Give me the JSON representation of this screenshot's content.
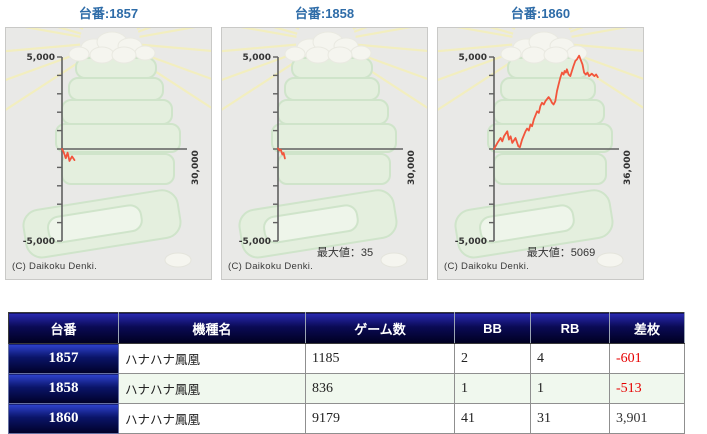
{
  "colors": {
    "title_blue": "#2e6ca8",
    "panel_bg": "#e9e9e7",
    "ray_yellow": "#f4efbb",
    "pagoda_green_fill": "#e4efde",
    "pagoda_green_stroke": "#cfe4ca",
    "blossom_white": "#f5f5ef",
    "axis_gray": "#606060",
    "label_gray": "#333333",
    "line_red": "#f2553c",
    "negative_red": "#e60000",
    "positive_dark": "#333333"
  },
  "panels": [
    {
      "title": "台番:1857",
      "copyright": "(C) Daikoku Denki."
    },
    {
      "title": "台番:1858",
      "copyright": "(C) Daikoku Denki."
    },
    {
      "title": "台番:1860",
      "copyright": "(C) Daikoku Denki."
    }
  ],
  "chart_data": [
    {
      "type": "line",
      "title": "台番:1857",
      "ylabel": "",
      "xlabel": "",
      "ylim": [
        -5000,
        5000
      ],
      "y_tick_interval": 1000,
      "y_axis_top_label": "5,000",
      "y_axis_bottom_label": "-5,000",
      "x_axis_label": "30,000",
      "max_value_label": "",
      "final_value": -601,
      "points": [
        [
          0,
          0
        ],
        [
          0.012,
          -150
        ],
        [
          0.03,
          -500
        ],
        [
          0.045,
          -200
        ],
        [
          0.06,
          -650
        ],
        [
          0.08,
          -400
        ],
        [
          0.1,
          -601
        ]
      ]
    },
    {
      "type": "line",
      "title": "台番:1858",
      "ylabel": "",
      "xlabel": "",
      "ylim": [
        -5000,
        5000
      ],
      "y_tick_interval": 1000,
      "y_axis_top_label": "5,000",
      "y_axis_bottom_label": "-5,000",
      "x_axis_label": "30,000",
      "max_value_label": "最大値：35",
      "max_value": 35,
      "final_value": -513,
      "points": [
        [
          0,
          35
        ],
        [
          0.012,
          -80
        ],
        [
          0.022,
          -40
        ],
        [
          0.035,
          -300
        ],
        [
          0.045,
          -220
        ],
        [
          0.055,
          -513
        ]
      ]
    },
    {
      "type": "line",
      "title": "台番:1860",
      "ylabel": "",
      "xlabel": "",
      "ylim": [
        -5000,
        5000
      ],
      "y_tick_interval": 1000,
      "y_axis_top_label": "5,000",
      "y_axis_bottom_label": "-5,000",
      "x_axis_label": "36,000",
      "max_value_label": "最大値：5069",
      "max_value": 5069,
      "final_value": 3901,
      "points": [
        [
          0,
          0
        ],
        [
          0.027,
          330
        ],
        [
          0.053,
          600
        ],
        [
          0.066,
          420
        ],
        [
          0.08,
          690
        ],
        [
          0.106,
          960
        ],
        [
          0.119,
          510
        ],
        [
          0.133,
          690
        ],
        [
          0.146,
          330
        ],
        [
          0.172,
          600
        ],
        [
          0.194,
          150
        ],
        [
          0.207,
          100
        ],
        [
          0.225,
          510
        ],
        [
          0.252,
          960
        ],
        [
          0.265,
          1110
        ],
        [
          0.278,
          1000
        ],
        [
          0.292,
          1330
        ],
        [
          0.305,
          1240
        ],
        [
          0.318,
          1600
        ],
        [
          0.345,
          2050
        ],
        [
          0.358,
          1960
        ],
        [
          0.371,
          2330
        ],
        [
          0.384,
          2510
        ],
        [
          0.398,
          2420
        ],
        [
          0.411,
          2600
        ],
        [
          0.437,
          2820
        ],
        [
          0.451,
          2690
        ],
        [
          0.464,
          2510
        ],
        [
          0.477,
          2420
        ],
        [
          0.49,
          2600
        ],
        [
          0.504,
          3150
        ],
        [
          0.517,
          3510
        ],
        [
          0.53,
          3870
        ],
        [
          0.544,
          4150
        ],
        [
          0.557,
          4050
        ],
        [
          0.565,
          4240
        ],
        [
          0.575,
          4150
        ],
        [
          0.583,
          4330
        ],
        [
          0.597,
          4050
        ],
        [
          0.61,
          3960
        ],
        [
          0.623,
          4240
        ],
        [
          0.636,
          4510
        ],
        [
          0.65,
          4780
        ],
        [
          0.663,
          4870
        ],
        [
          0.681,
          5069
        ],
        [
          0.695,
          4820
        ],
        [
          0.708,
          4600
        ],
        [
          0.721,
          4150
        ],
        [
          0.734,
          4050
        ],
        [
          0.748,
          4150
        ],
        [
          0.761,
          3960
        ],
        [
          0.782,
          4090
        ],
        [
          0.803,
          3960
        ],
        [
          0.817,
          4050
        ],
        [
          0.83,
          3901
        ]
      ]
    }
  ],
  "table": {
    "headers": [
      "台番",
      "機種名",
      "ゲーム数",
      "BB",
      "RB",
      "差枚"
    ],
    "rows": [
      {
        "dai": "1857",
        "kishu": "ハナハナ鳳凰",
        "games": "1185",
        "bb": "2",
        "rb": "4",
        "sai": "-601",
        "sai_color": "#e60000"
      },
      {
        "dai": "1858",
        "kishu": "ハナハナ鳳凰",
        "games": "836",
        "bb": "1",
        "rb": "1",
        "sai": "-513",
        "sai_color": "#e60000"
      },
      {
        "dai": "1860",
        "kishu": "ハナハナ鳳凰",
        "games": "9179",
        "bb": "41",
        "rb": "31",
        "sai": "3,901",
        "sai_color": "#333333"
      }
    ]
  }
}
